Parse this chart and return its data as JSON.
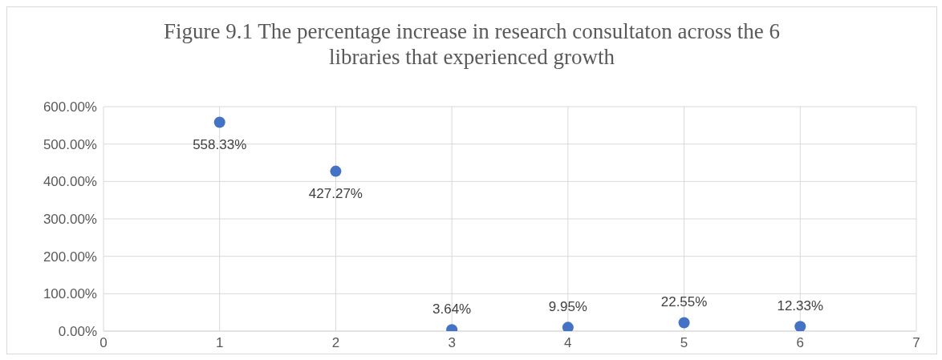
{
  "chart_data": {
    "type": "scatter",
    "title": "Figure 9.1 The percentage increase in research consultaton across the 6 libraries that experienced growth",
    "x": [
      1,
      2,
      3,
      4,
      5,
      6
    ],
    "values": [
      558.33,
      427.27,
      3.64,
      9.95,
      22.55,
      12.33
    ],
    "value_labels": [
      "558.33%",
      "427.27%",
      "3.64%",
      "9.95%",
      "22.55%",
      "12.33%"
    ],
    "color": "#4472c4",
    "marker": "circle",
    "grid": true,
    "xlim": [
      0,
      7
    ],
    "xticks": [
      0,
      1,
      2,
      3,
      4,
      5,
      6,
      7
    ],
    "ylim": [
      0,
      600
    ],
    "yticks": [
      {
        "value": 0,
        "label": "0.00%"
      },
      {
        "value": 100,
        "label": "100.00%"
      },
      {
        "value": 200,
        "label": "200.00%"
      },
      {
        "value": 300,
        "label": "300.00%"
      },
      {
        "value": 400,
        "label": "400.00%"
      },
      {
        "value": 500,
        "label": "500.00%"
      },
      {
        "value": 600,
        "label": "600.00%"
      }
    ]
  }
}
